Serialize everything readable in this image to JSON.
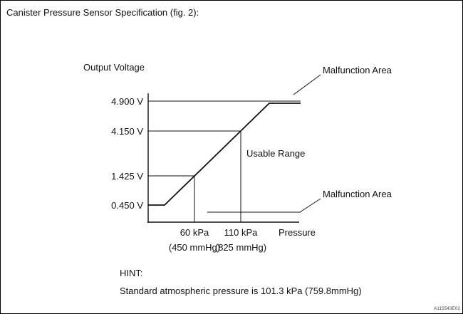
{
  "page": {
    "title": "Canister Pressure Sensor Specification (fig. 2):",
    "figure_code": "A115543E02"
  },
  "hint": {
    "label": "HINT:",
    "text": "Standard atmospheric pressure is 101.3 kPa (759.8mmHg)"
  },
  "chart_data": {
    "type": "line",
    "title": "Canister Pressure Sensor Specification (fig. 2)",
    "xlabel": "Pressure",
    "ylabel": "Output Voltage",
    "y_ticks": [
      "4.900 V",
      "4.150 V",
      "1.425 V",
      "0.450 V"
    ],
    "x_ticks": [
      {
        "label": "60 kPa",
        "sub": "(450 mmHg)",
        "kpa": 60,
        "mmhg": 450
      },
      {
        "label": "110 kPa",
        "sub": "(825 mmHg)",
        "kpa": 110,
        "mmhg": 825
      }
    ],
    "series": [
      {
        "name": "sensor-output-voltage",
        "shape": "flat at 0.450 V at low pressure, linear rise between 60 kPa and 110 kPa, flat at 4.900 V at high pressure",
        "points": [
          {
            "pressure_kpa": null,
            "voltage_v": 0.45
          },
          {
            "pressure_kpa": 60,
            "voltage_v": 1.425
          },
          {
            "pressure_kpa": 110,
            "voltage_v": 4.15
          },
          {
            "pressure_kpa": null,
            "voltage_v": 4.9
          }
        ]
      }
    ],
    "annotations": {
      "malfunction_top": "Malfunction Area",
      "malfunction_bottom": "Malfunction Area",
      "usable_range": "Usable Range"
    },
    "axis_ranges": {
      "voltage_v": [
        0.45,
        4.9
      ]
    },
    "legend": "none",
    "grid": "reference lines at tick values only"
  }
}
